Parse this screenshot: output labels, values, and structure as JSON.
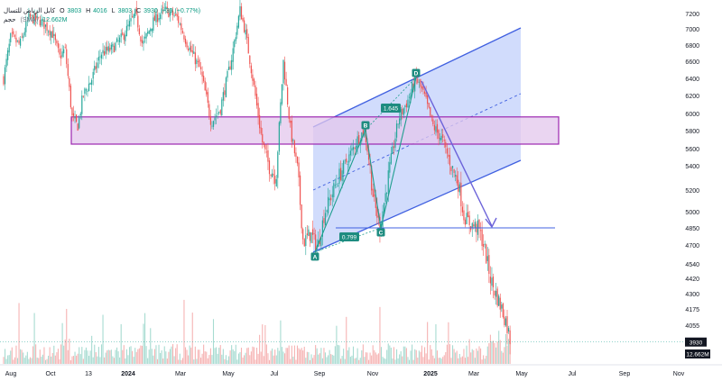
{
  "legend": {
    "symbol": "كابل الرياض للتسال",
    "open_label": "O",
    "open": "3803",
    "high_label": "H",
    "high": "4016",
    "low_label": "L",
    "low": "3803",
    "close_label": "C",
    "close": "3930",
    "change": "+30 (+0.77%)",
    "volume_label": "حجم",
    "volume_ma": "(SMA)",
    "volume_value": "12.662M"
  },
  "price_badge": "3930",
  "volume_badge": "12.662M",
  "colors": {
    "up": "#26a69a",
    "down": "#ef5350",
    "vol_up": "#a7dbd1",
    "vol_down": "#f6b3b3",
    "channel_line": "#4060e0",
    "channel_fill": "#c9d6fb",
    "zone_stroke": "#9c27b0",
    "zone_fill": "#e3c7ec",
    "projection": "#6c63d9",
    "label_box": "#1e8c80",
    "badge": "#131722",
    "last_price_line": "#26a69a"
  },
  "chart_data": {
    "type": "candlestick",
    "y_axis_ticks": [
      "7200",
      "7000",
      "6800",
      "6600",
      "6400",
      "6200",
      "6000",
      "5800",
      "5600",
      "5400",
      "5200",
      "5000",
      "4850",
      "4700",
      "4540",
      "4420",
      "4300",
      "4175",
      "4055"
    ],
    "x_axis_ticks": [
      "Aug",
      "Oct",
      "13",
      "2024",
      "Mar",
      "May",
      "Jul",
      "Sep",
      "Nov",
      "2025",
      "Mar",
      "May",
      "Jul",
      "Sep",
      "Nov"
    ],
    "last_close": 3930,
    "last_volume": "12.662M",
    "annotations": {
      "pattern_points": [
        {
          "label": "A",
          "price": 4640
        },
        {
          "label": "B",
          "price": 5810
        },
        {
          "label": "C",
          "price": 4850
        },
        {
          "label": "D",
          "price": 6410
        }
      ],
      "ratios": [
        {
          "label": "1.645"
        },
        {
          "label": "0.799"
        }
      ],
      "horizontal_level": 4850,
      "resistance_zone": [
        5650,
        5960
      ],
      "channel": "ascending parallel channel with dashed median",
      "projection": "arrow from D down to level 4850"
    }
  }
}
